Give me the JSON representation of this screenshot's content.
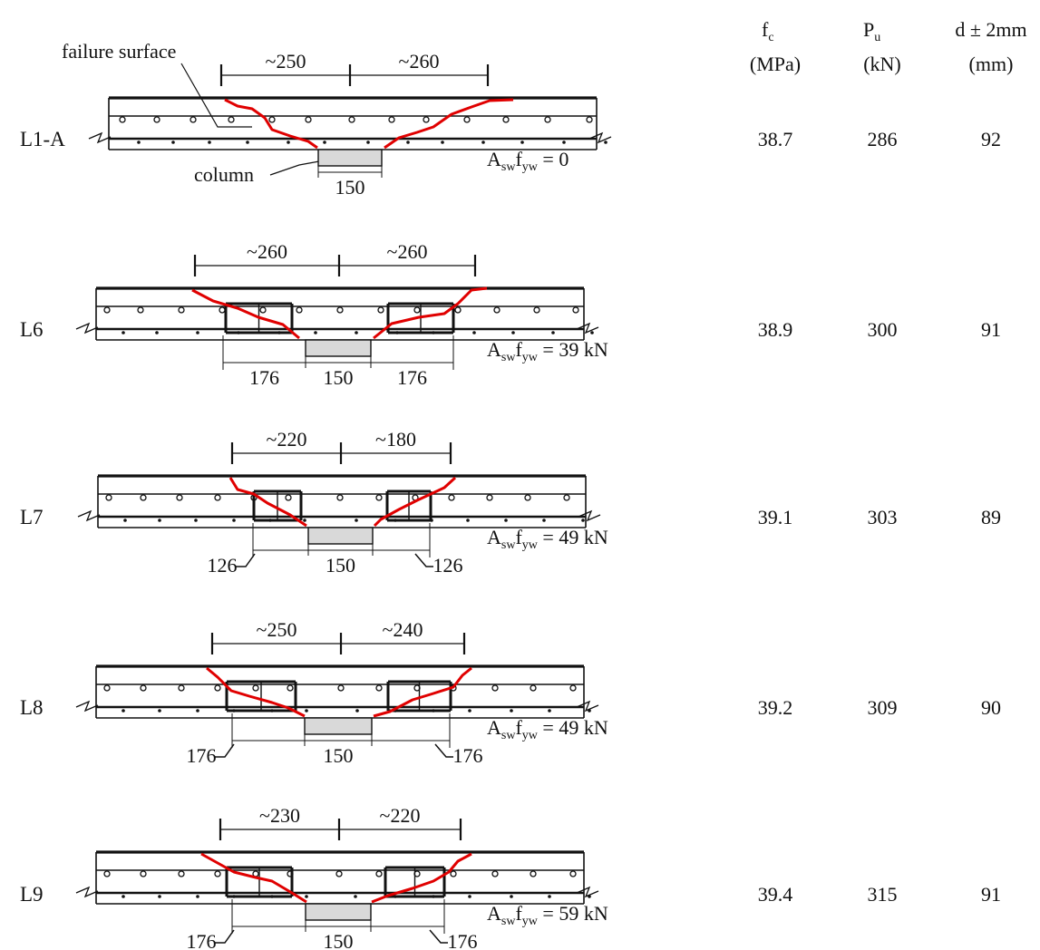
{
  "headers": [
    {
      "main": "f",
      "sub": "c",
      "unit": "(MPa)"
    },
    {
      "main": "P",
      "sub": "u",
      "unit": "(kN)"
    },
    {
      "main": "d ± 2mm",
      "sub": "",
      "unit": "(mm)"
    }
  ],
  "labels": {
    "failure_surface": "failure surface",
    "column": "column"
  },
  "specimens": [
    {
      "name": "L1-A",
      "fc": "38.7",
      "pu": "286",
      "d": "92",
      "left_span": "~250",
      "right_span": "~260",
      "column_width": "150",
      "left_dim": "",
      "right_dim": "",
      "asw": "A",
      "asw_sub": "sw",
      "fyw": "f",
      "fyw_sub": "yw",
      "asw_value": "= 0"
    },
    {
      "name": "L6",
      "fc": "38.9",
      "pu": "300",
      "d": "91",
      "left_span": "~260",
      "right_span": "~260",
      "column_width": "150",
      "left_dim": "176",
      "right_dim": "176",
      "asw": "A",
      "asw_sub": "sw",
      "fyw": "f",
      "fyw_sub": "yw",
      "asw_value": "= 39 kN"
    },
    {
      "name": "L7",
      "fc": "39.1",
      "pu": "303",
      "d": "89",
      "left_span": "~220",
      "right_span": "~180",
      "column_width": "150",
      "left_dim": "126",
      "right_dim": "126",
      "asw": "A",
      "asw_sub": "sw",
      "fyw": "f",
      "fyw_sub": "yw",
      "asw_value": "= 49 kN"
    },
    {
      "name": "L8",
      "fc": "39.2",
      "pu": "309",
      "d": "90",
      "left_span": "~250",
      "right_span": "~240",
      "column_width": "150",
      "left_dim": "176",
      "right_dim": "176",
      "asw": "A",
      "asw_sub": "sw",
      "fyw": "f",
      "fyw_sub": "yw",
      "asw_value": "= 49 kN"
    },
    {
      "name": "L9",
      "fc": "39.4",
      "pu": "315",
      "d": "91",
      "left_span": "~230",
      "right_span": "~220",
      "column_width": "150",
      "left_dim": "176",
      "right_dim": "176",
      "asw": "A",
      "asw_sub": "sw",
      "fyw": "f",
      "fyw_sub": "yw",
      "asw_value": "= 59 kN"
    }
  ],
  "colors": {
    "crack": "#e00000",
    "column_fill": "#d9d9d9",
    "ink": "#111111"
  }
}
